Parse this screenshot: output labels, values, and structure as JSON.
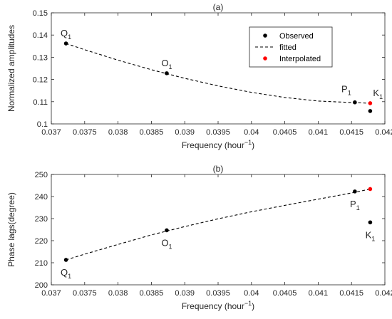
{
  "chart_data": [
    {
      "type": "scatter",
      "title": "(a)",
      "xlabel": "Frequency (hour",
      "xlabel_sup": "−1",
      "xlabel_close": ")",
      "ylabel": "Normalized amplitudes",
      "xlim": [
        0.037,
        0.042
      ],
      "ylim": [
        0.1,
        0.15
      ],
      "xticks": [
        0.037,
        0.0375,
        0.038,
        0.0385,
        0.039,
        0.0395,
        0.04,
        0.0405,
        0.041,
        0.0415,
        0.042
      ],
      "xtick_labels": [
        "0.037",
        "0.0375",
        "0.038",
        "0.0385",
        "0.039",
        "0.0395",
        "0.04",
        "0.0405",
        "0.041",
        "0.0415",
        "0.042"
      ],
      "yticks": [
        0.1,
        0.11,
        0.12,
        0.13,
        0.14,
        0.15
      ],
      "ytick_labels": [
        "0.1",
        "0.11",
        "0.12",
        "0.13",
        "0.14",
        "0.15"
      ],
      "grid": false,
      "legend": {
        "placement": "top-right",
        "entries": [
          {
            "label": "Observed",
            "marker": "dot",
            "color": "#000000"
          },
          {
            "label": "fitted",
            "marker": "dashed-line",
            "color": "#000000"
          },
          {
            "label": "Interpolated",
            "marker": "dot",
            "color": "#ff0000"
          }
        ]
      },
      "series": [
        {
          "name": "Observed",
          "color": "#000000",
          "points": [
            {
              "x": 0.03722,
              "y": 0.1362
            },
            {
              "x": 0.03873,
              "y": 0.1228
            },
            {
              "x": 0.04155,
              "y": 0.1097
            },
            {
              "x": 0.04178,
              "y": 0.1058
            }
          ]
        },
        {
          "name": "fitted",
          "color": "#000000",
          "style": "dashed",
          "points": [
            {
              "x": 0.03722,
              "y": 0.1362
            },
            {
              "x": 0.0375,
              "y": 0.1334
            },
            {
              "x": 0.038,
              "y": 0.1287
            },
            {
              "x": 0.0385,
              "y": 0.1244
            },
            {
              "x": 0.039,
              "y": 0.1205
            },
            {
              "x": 0.0395,
              "y": 0.1171
            },
            {
              "x": 0.04,
              "y": 0.1142
            },
            {
              "x": 0.0405,
              "y": 0.1119
            },
            {
              "x": 0.041,
              "y": 0.1103
            },
            {
              "x": 0.0415,
              "y": 0.1096
            },
            {
              "x": 0.04178,
              "y": 0.1093
            }
          ]
        },
        {
          "name": "Interpolated",
          "color": "#ff0000",
          "points": [
            {
              "x": 0.04178,
              "y": 0.1093
            }
          ]
        }
      ],
      "annotations": [
        {
          "name": "Q",
          "sub": "1",
          "x": 0.03722,
          "y": 0.1362,
          "position": "above"
        },
        {
          "name": "O",
          "sub": "1",
          "x": 0.03873,
          "y": 0.1228,
          "position": "above"
        },
        {
          "name": "P",
          "sub": "1",
          "x": 0.04155,
          "y": 0.1097,
          "position": "above-left"
        },
        {
          "name": "K",
          "sub": "1",
          "x": 0.04178,
          "y": 0.1093,
          "position": "above-right"
        }
      ]
    },
    {
      "type": "scatter",
      "title": "(b)",
      "xlabel": "Frequency (hour",
      "xlabel_sup": "−1",
      "xlabel_close": ")",
      "ylabel": "Phase lags(degree)",
      "xlim": [
        0.037,
        0.042
      ],
      "ylim": [
        200,
        250
      ],
      "xticks": [
        0.037,
        0.0375,
        0.038,
        0.0385,
        0.039,
        0.0395,
        0.04,
        0.0405,
        0.041,
        0.0415,
        0.042
      ],
      "xtick_labels": [
        "0.037",
        "0.0375",
        "0.038",
        "0.0385",
        "0.039",
        "0.0395",
        "0.04",
        "0.0405",
        "0.041",
        "0.0415",
        "0.042"
      ],
      "yticks": [
        200,
        210,
        220,
        230,
        240,
        250
      ],
      "ytick_labels": [
        "200",
        "210",
        "220",
        "230",
        "240",
        "250"
      ],
      "grid": false,
      "series": [
        {
          "name": "Observed",
          "color": "#000000",
          "points": [
            {
              "x": 0.03722,
              "y": 211.3
            },
            {
              "x": 0.03873,
              "y": 224.7
            },
            {
              "x": 0.04155,
              "y": 242.3
            },
            {
              "x": 0.04178,
              "y": 228.3
            }
          ]
        },
        {
          "name": "fitted",
          "color": "#000000",
          "style": "dashed",
          "points": [
            {
              "x": 0.03722,
              "y": 211.3
            },
            {
              "x": 0.0375,
              "y": 213.9
            },
            {
              "x": 0.038,
              "y": 218.3
            },
            {
              "x": 0.0385,
              "y": 222.6
            },
            {
              "x": 0.039,
              "y": 226.4
            },
            {
              "x": 0.0395,
              "y": 229.9
            },
            {
              "x": 0.04,
              "y": 233.1
            },
            {
              "x": 0.0405,
              "y": 236.0
            },
            {
              "x": 0.041,
              "y": 238.8
            },
            {
              "x": 0.0415,
              "y": 241.6
            },
            {
              "x": 0.04178,
              "y": 243.4
            }
          ]
        },
        {
          "name": "Interpolated",
          "color": "#ff0000",
          "points": [
            {
              "x": 0.04178,
              "y": 243.4
            }
          ]
        }
      ],
      "annotations": [
        {
          "name": "Q",
          "sub": "1",
          "x": 0.03722,
          "y": 211.3,
          "position": "below"
        },
        {
          "name": "O",
          "sub": "1",
          "x": 0.03873,
          "y": 224.7,
          "position": "below"
        },
        {
          "name": "P",
          "sub": "1",
          "x": 0.04155,
          "y": 242.3,
          "position": "below"
        },
        {
          "name": "K",
          "sub": "1",
          "x": 0.04178,
          "y": 228.3,
          "position": "below"
        }
      ]
    }
  ]
}
